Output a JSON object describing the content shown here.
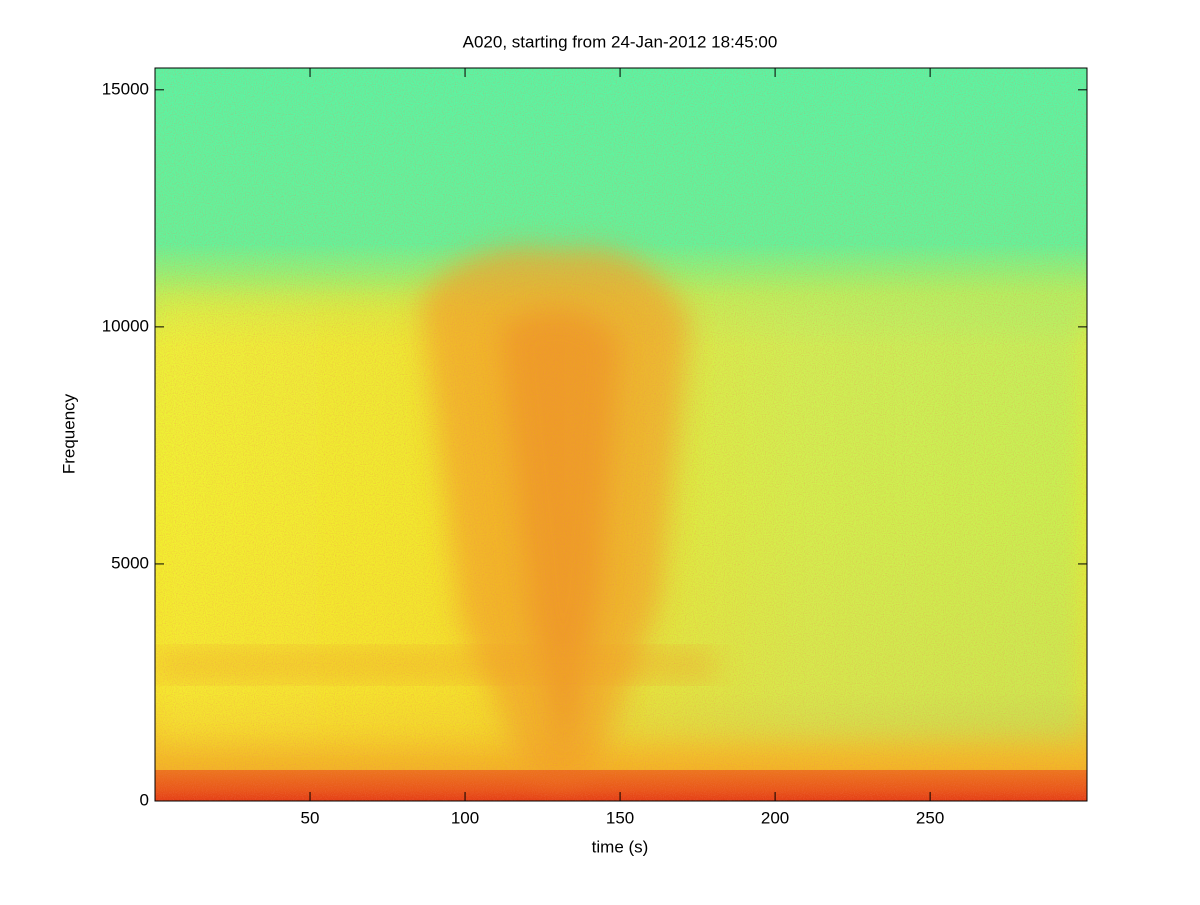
{
  "chart_data": {
    "type": "spectrogram",
    "title": "A020, starting from 24-Jan-2012 18:45:00",
    "x_label": "time (s)",
    "y_label": "Frequency",
    "xlim": [
      0,
      300.6
    ],
    "xticks": [
      50,
      100,
      150,
      200,
      250
    ],
    "ylim": [
      0,
      15460
    ],
    "yticks": [
      0,
      5000,
      10000,
      15000
    ]
  }
}
